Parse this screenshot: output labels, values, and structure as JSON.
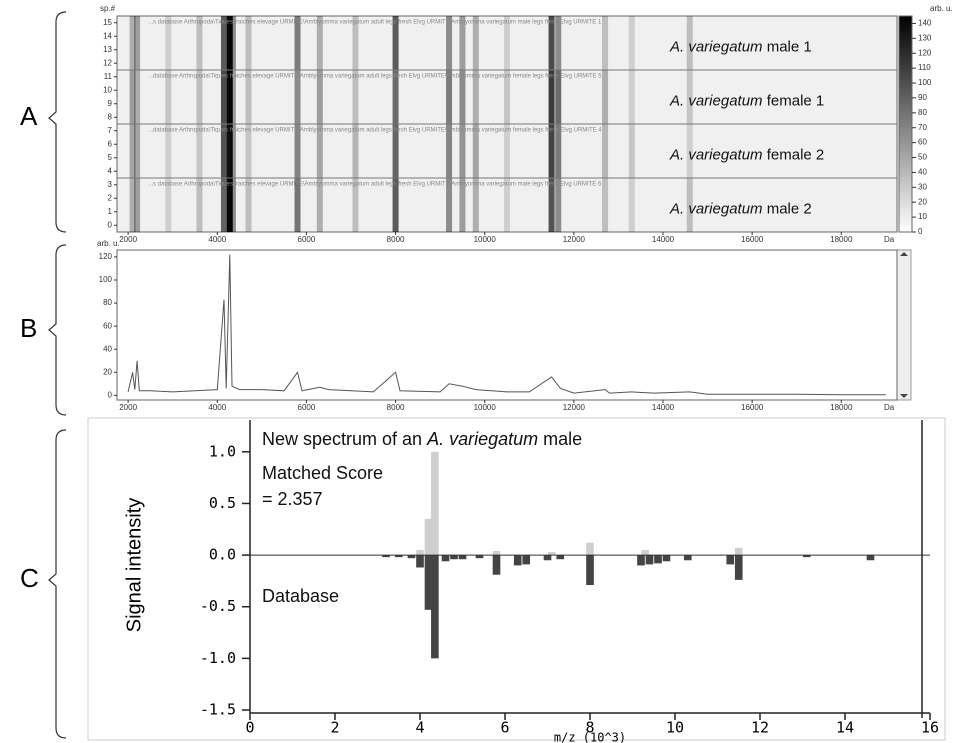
{
  "panel_labels": [
    "A",
    "B",
    "C"
  ],
  "chart_data": [
    {
      "type": "heatmap",
      "y_label": "sp.#",
      "x_unit": "Da",
      "xlim": [
        1750,
        19250
      ],
      "xticks": [
        2000,
        4000,
        6000,
        8000,
        10000,
        12000,
        14000,
        16000,
        18000
      ],
      "ylim": [
        -0.5,
        15.5
      ],
      "yticks": [
        0,
        1,
        2,
        3,
        4,
        5,
        6,
        7,
        8,
        9,
        10,
        11,
        12,
        13,
        14,
        15
      ],
      "colorbar": {
        "label": "arb. u.",
        "lim": [
          0,
          145
        ],
        "ticks": [
          0,
          10,
          20,
          30,
          40,
          50,
          60,
          70,
          80,
          90,
          100,
          110,
          120,
          130,
          140
        ]
      },
      "x": [
        2100,
        2200,
        2900,
        3600,
        4150,
        4280,
        4350,
        4700,
        5800,
        6300,
        7100,
        8000,
        9200,
        9500,
        9800,
        10500,
        11500,
        11650,
        12700,
        13300,
        14600
      ],
      "series": [
        {
          "name": [
            "A. variegatum",
            "male 1"
          ],
          "rows": [
            12,
            15
          ],
          "header": "...s database Arthropoda\\Tiques fraiches elevage URMITE\\Amblyomma variegatum adult legs fresh Elvg URMITE\\Amblyomma variegatum male legs fresh Elvg URMITE 1",
          "values": [
            40,
            50,
            20,
            30,
            90,
            140,
            60,
            30,
            70,
            40,
            30,
            90,
            60,
            50,
            40,
            20,
            100,
            60,
            30,
            20,
            30
          ]
        },
        {
          "name": [
            "A. variegatum",
            "female 1"
          ],
          "rows": [
            8,
            11
          ],
          "header": "...database Arthropoda\\Tiques fraiches elevage URMITE\\Amblyomma variegatum adult legs fresh Elvg URMITE\\Amblyomma variegatum female legs fresh Elvg URMITE 5",
          "values": [
            50,
            40,
            25,
            30,
            100,
            140,
            50,
            30,
            60,
            50,
            30,
            80,
            70,
            60,
            40,
            25,
            110,
            80,
            40,
            20,
            25
          ]
        },
        {
          "name": [
            "A. variegatum",
            "female 2"
          ],
          "rows": [
            4,
            7
          ],
          "header": "...database Arthropoda\\Tiques fraiches elevage URMITE\\Amblyomma variegatum adult legs fresh Elvg URMITE\\Amblyomma variegatum female legs fresh Elvg URMITE 4",
          "values": [
            45,
            45,
            20,
            25,
            95,
            135,
            55,
            25,
            65,
            45,
            35,
            85,
            65,
            55,
            45,
            20,
            105,
            70,
            35,
            25,
            20
          ]
        },
        {
          "name": [
            "A. variegatum",
            "male 2"
          ],
          "rows": [
            0,
            3
          ],
          "header": "...s database Arthropoda\\Tiques fraiches elevage URMITE\\Amblyomma variegatum adult legs fresh Elvg URMITE\\Amblyomma variegatum male legs fresh Elvg URMITE 6",
          "values": [
            40,
            50,
            20,
            30,
            85,
            140,
            60,
            30,
            75,
            40,
            30,
            90,
            60,
            50,
            40,
            20,
            95,
            60,
            30,
            20,
            30
          ]
        }
      ]
    },
    {
      "type": "line",
      "y_label": "arb. u.",
      "x_unit": "Da",
      "color": "#555555",
      "xlim": [
        1750,
        19250
      ],
      "xticks": [
        2000,
        4000,
        6000,
        8000,
        10000,
        12000,
        14000,
        16000,
        18000
      ],
      "ylim": [
        -4,
        126
      ],
      "yticks": [
        0,
        20,
        40,
        60,
        80,
        100,
        120
      ],
      "x": [
        2000,
        2100,
        2150,
        2200,
        2250,
        2500,
        3000,
        3500,
        4000,
        4150,
        4200,
        4280,
        4330,
        4500,
        5000,
        5500,
        5800,
        5900,
        6300,
        6500,
        7000,
        7500,
        8000,
        8100,
        9000,
        9200,
        9500,
        9800,
        10500,
        11000,
        11500,
        11700,
        12000,
        12700,
        12800,
        13300,
        13800,
        14600,
        15000,
        16000,
        17000,
        18000,
        19000
      ],
      "values": [
        3,
        20,
        5,
        30,
        4,
        4,
        3,
        4,
        5,
        83,
        6,
        122,
        8,
        5,
        5,
        4,
        20,
        4,
        7,
        5,
        4,
        3,
        20,
        4,
        3,
        10,
        8,
        5,
        3,
        3,
        16,
        6,
        2,
        5,
        2,
        3,
        2,
        3,
        1,
        1,
        1,
        0.5,
        0.5
      ]
    },
    {
      "type": "bar",
      "y_label": "Signal intensity",
      "x_label": "m/z (10^3)",
      "annotations": {
        "new_spectrum": [
          "New spectrum of an",
          "A. variegatum",
          "male"
        ],
        "score_label": "Matched Score",
        "score": "= 2.357",
        "database": "Database"
      },
      "xlim": [
        0,
        16
      ],
      "xticks": [
        0,
        2,
        4,
        6,
        8,
        10,
        12,
        14,
        16
      ],
      "ylim": [
        -1.5,
        1.25
      ],
      "yticks": [
        {
          "value": -1.5,
          "label": "-1.5"
        },
        {
          "value": -1,
          "label": "-1.0"
        },
        {
          "value": -0.5,
          "label": "-0.5"
        },
        {
          "value": 0,
          "label": "0.0"
        },
        {
          "value": 0.5,
          "label": "0.5"
        },
        {
          "value": 1,
          "label": "1.0"
        }
      ],
      "series": [
        {
          "color": "#cfcfcf",
          "x": [
            4.0,
            4.2,
            4.35,
            5.8,
            7.1,
            8.0,
            9.3,
            11.5
          ],
          "values": [
            0.05,
            0.35,
            1.0,
            0.04,
            0.03,
            0.12,
            0.05,
            0.07
          ]
        },
        {
          "color": "#444444",
          "x": [
            3.2,
            3.5,
            3.8,
            4.0,
            4.2,
            4.35,
            4.6,
            4.8,
            5.0,
            5.4,
            5.8,
            6.3,
            6.5,
            7.0,
            7.3,
            8.0,
            9.2,
            9.4,
            9.6,
            9.8,
            10.3,
            11.3,
            11.5,
            13.1,
            14.6
          ],
          "values": [
            -0.02,
            -0.02,
            -0.03,
            -0.12,
            -0.53,
            -1.0,
            -0.06,
            -0.04,
            -0.04,
            -0.03,
            -0.19,
            -0.1,
            -0.09,
            -0.05,
            -0.04,
            -0.29,
            -0.1,
            -0.09,
            -0.08,
            -0.06,
            -0.05,
            -0.09,
            -0.24,
            -0.02,
            -0.05
          ]
        }
      ]
    }
  ]
}
